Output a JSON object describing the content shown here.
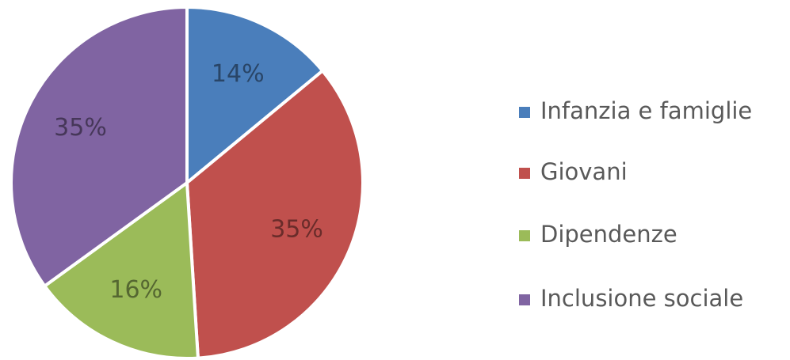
{
  "chart_data": {
    "type": "pie",
    "categories": [
      "Infanzia e famiglie",
      "Giovani",
      "Dipendenze",
      "Inclusione sociale"
    ],
    "values": [
      14,
      35,
      16,
      35
    ],
    "value_labels": [
      "14%",
      "35%",
      "16%",
      "35%"
    ],
    "colors": [
      "#4a7ebb",
      "#c0504d",
      "#9bbb59",
      "#8064a2"
    ],
    "legend": "right"
  }
}
